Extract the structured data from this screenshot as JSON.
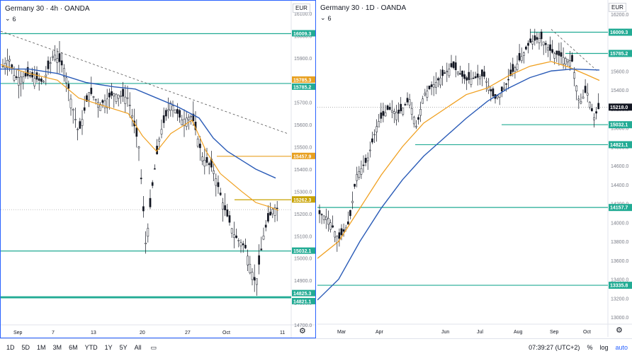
{
  "left_chart": {
    "title": "Germany 30 · 4h · OANDA",
    "indicator_count": "6",
    "currency": "EUR",
    "price_ticks": [
      "16100.0",
      "16000.0",
      "15900.0",
      "15800.0",
      "15700.0",
      "15600.0",
      "15500.0",
      "15400.0",
      "15300.0",
      "15200.0",
      "15100.0",
      "15000.0",
      "14900.0",
      "14800.0",
      "14700.0"
    ],
    "time_labels": [
      "Sep",
      "7",
      "13",
      "20",
      "27",
      "Oct",
      "11"
    ],
    "levels": [
      {
        "label": "16009.3",
        "value": 16009.3,
        "color": "#22ab94",
        "kind": "support"
      },
      {
        "label": "15785.3",
        "value": 15785.3,
        "color": "#e8a020",
        "kind": "ma"
      },
      {
        "label": "15785.2",
        "value": 15785.2,
        "color": "#22ab94",
        "kind": "support"
      },
      {
        "label": "15457.9",
        "value": 15457.9,
        "color": "#e8a020",
        "kind": "ma"
      },
      {
        "label": "15262.3",
        "value": 15262.3,
        "color": "#c8a200",
        "kind": "price"
      },
      {
        "label": "15032.1",
        "value": 15032.1,
        "color": "#22ab94",
        "kind": "support"
      },
      {
        "label": "14825.3",
        "value": 14825.3,
        "color": "#22ab94",
        "kind": "support"
      },
      {
        "label": "14821.1",
        "value": 14821.1,
        "color": "#22ab94",
        "kind": "support"
      }
    ]
  },
  "right_chart": {
    "title": "Germany 30 · 1D · OANDA",
    "indicator_count": "6",
    "currency": "EUR",
    "price_ticks": [
      "16200.0",
      "16000.0",
      "15800.0",
      "15600.0",
      "15400.0",
      "15200.0",
      "15000.0",
      "14800.0",
      "14600.0",
      "14400.0",
      "14200.0",
      "14000.0",
      "13800.0",
      "13600.0",
      "13400.0",
      "13200.0",
      "13000.0"
    ],
    "time_labels": [
      "Mar",
      "Apr",
      "Jun",
      "Jul",
      "Aug",
      "Sep",
      "Oct"
    ],
    "levels": [
      {
        "label": "16009.3",
        "value": 16009.3,
        "color": "#22ab94"
      },
      {
        "label": "15785.2",
        "value": 15785.2,
        "color": "#22ab94"
      },
      {
        "label": "15218.0",
        "value": 15218.0,
        "color": "#131722"
      },
      {
        "label": "15032.1",
        "value": 15032.1,
        "color": "#22ab94"
      },
      {
        "label": "14821.1",
        "value": 14821.1,
        "color": "#22ab94"
      },
      {
        "label": "14157.7",
        "value": 14157.7,
        "color": "#22ab94"
      },
      {
        "label": "13335.8",
        "value": 13335.8,
        "color": "#22ab94"
      }
    ]
  },
  "bottom_bar": {
    "timeframes": [
      "1D",
      "5D",
      "1M",
      "3M",
      "6M",
      "YTD",
      "1Y",
      "5Y",
      "All"
    ],
    "clock": "07:39:27 (UTC+2)",
    "percent": "%",
    "log": "log",
    "auto": "auto"
  },
  "colors": {
    "support": "#22ab94",
    "ma_orange": "#f0a020",
    "ma_blue": "#2a5bb7",
    "candle": "#131722"
  }
}
